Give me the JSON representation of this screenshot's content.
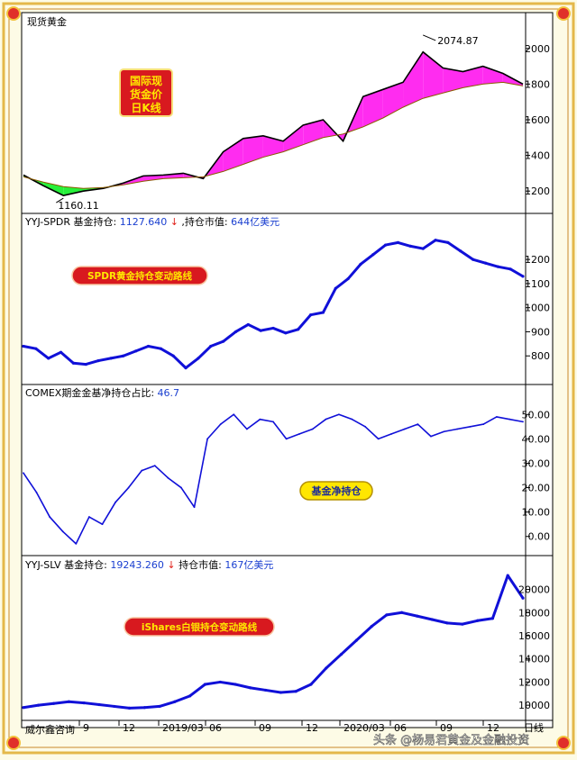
{
  "window_title": "现货黄金",
  "watermark": "头条 @杨易君黄金及金融投资",
  "bottom_left_label": "威尔鑫咨询",
  "x_axis_ticks": [
    "9",
    "12",
    "2019/03",
    "06",
    "09",
    "12",
    "2020/03",
    "06",
    "09",
    "12",
    "日线"
  ],
  "panels": {
    "gold": {
      "badge_lines": [
        "国际现",
        "货金价",
        "日K线"
      ],
      "high_label": "2074.87",
      "low_label": "1160.11",
      "y_ticks": [
        "2000",
        "1800",
        "1600",
        "1400",
        "1200"
      ]
    },
    "spdr": {
      "header_name": "YYJ-SPDR 基金持仓:",
      "header_value": "1127.640",
      "header_arrow": "↓",
      "header_mv_label": ",持仓市值:",
      "header_mv_value": "644亿美元",
      "badge": "SPDR黄金持仓变动路线",
      "y_ticks": [
        "1200",
        "1100",
        "1000",
        "900",
        "800"
      ]
    },
    "comex": {
      "header_name": "COMEX期金金基净持仓占比:",
      "header_value": "46.7",
      "badge": "基金净持仓",
      "y_ticks": [
        "50.00",
        "40.00",
        "30.00",
        "20.00",
        "10.00",
        "0.00"
      ]
    },
    "slv": {
      "header_name": "YYJ-SLV 基金持仓:",
      "header_value": "19243.260",
      "header_arrow": "↓",
      "header_mv_label": "持仓市值:",
      "header_mv_value": "167亿美元",
      "badge": "iShares白银持仓变动路线",
      "y_ticks": [
        "20000",
        "18000",
        "16000",
        "14000",
        "12000",
        "10000"
      ]
    }
  },
  "chart_data": [
    {
      "type": "line",
      "name": "gold",
      "ylim": [
        1100,
        2120
      ],
      "x_count": 26,
      "price": [
        1290,
        1230,
        1175,
        1200,
        1215,
        1245,
        1285,
        1290,
        1300,
        1270,
        1420,
        1495,
        1510,
        1480,
        1570,
        1600,
        1480,
        1730,
        1770,
        1810,
        1980,
        1890,
        1870,
        1900,
        1860,
        1800
      ],
      "ma": [
        1280,
        1250,
        1225,
        1215,
        1220,
        1235,
        1255,
        1270,
        1275,
        1280,
        1310,
        1350,
        1390,
        1420,
        1460,
        1500,
        1520,
        1560,
        1610,
        1670,
        1720,
        1750,
        1780,
        1800,
        1810,
        1790
      ],
      "high": 2074.87,
      "low": 1160.11
    },
    {
      "type": "line",
      "name": "spdr",
      "ylim": [
        700,
        1320
      ],
      "values": [
        840,
        830,
        790,
        815,
        770,
        765,
        780,
        790,
        800,
        820,
        840,
        830,
        800,
        750,
        790,
        840,
        860,
        900,
        930,
        905,
        915,
        895,
        910,
        970,
        980,
        1080,
        1120,
        1180,
        1220,
        1260,
        1270,
        1255,
        1245,
        1280,
        1270,
        1235,
        1200,
        1185,
        1170,
        1160,
        1130
      ],
      "last": 1127.64
    },
    {
      "type": "line",
      "name": "comex",
      "ylim": [
        -6,
        56
      ],
      "values": [
        26,
        18,
        8,
        2,
        -3,
        8,
        5,
        14,
        20,
        27,
        29,
        24,
        20,
        12,
        40,
        46,
        50,
        44,
        48,
        47,
        40,
        42,
        44,
        48,
        50,
        48,
        45,
        40,
        42,
        44,
        46,
        41,
        43,
        44,
        45,
        46,
        49,
        48,
        47
      ],
      "last": 46.7
    },
    {
      "type": "line",
      "name": "slv",
      "ylim": [
        9000,
        21600
      ],
      "values": [
        9800,
        10000,
        10150,
        10300,
        10200,
        10050,
        9900,
        9750,
        9800,
        9900,
        10300,
        10800,
        11800,
        12000,
        11800,
        11500,
        11300,
        11100,
        11200,
        11800,
        13200,
        14400,
        15600,
        16800,
        17800,
        18000,
        17700,
        17400,
        17100,
        17000,
        17300,
        17500,
        21200,
        19250
      ],
      "last": 19243.26
    }
  ]
}
